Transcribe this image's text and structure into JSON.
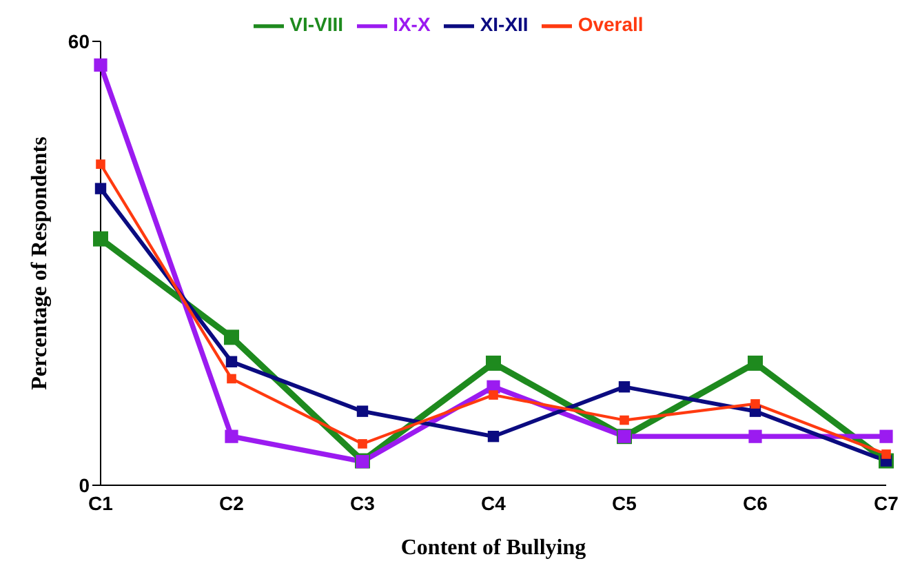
{
  "chart_data": {
    "type": "line",
    "xlabel": "Content of Bullying",
    "ylabel": "Percentage of Respondents",
    "categories": [
      "C1",
      "C2",
      "C3",
      "C4",
      "C5",
      "C6",
      "C7"
    ],
    "series": [
      {
        "name": "VI-VIII",
        "color": "#1e8a1e",
        "values": [
          33.3,
          20,
          3.3,
          16.5,
          6.6,
          16.5,
          3.3
        ]
      },
      {
        "name": "IX-X",
        "color": "#9b1bf0",
        "values": [
          56.8,
          6.6,
          3.2,
          13.3,
          6.6,
          6.6,
          6.6
        ]
      },
      {
        "name": "XI-XII",
        "color": "#0b0b80",
        "values": [
          40.1,
          16.7,
          10,
          6.6,
          13.3,
          10,
          3.3
        ]
      },
      {
        "name": "Overall",
        "color": "#ff3a10",
        "values": [
          43.4,
          14.4,
          5.6,
          12.2,
          8.8,
          11,
          4.2
        ]
      }
    ],
    "ylim": [
      0,
      60
    ],
    "yticks": [
      0,
      60
    ],
    "grid": false,
    "legend": "top",
    "marker": "square",
    "line_style": "solid"
  }
}
